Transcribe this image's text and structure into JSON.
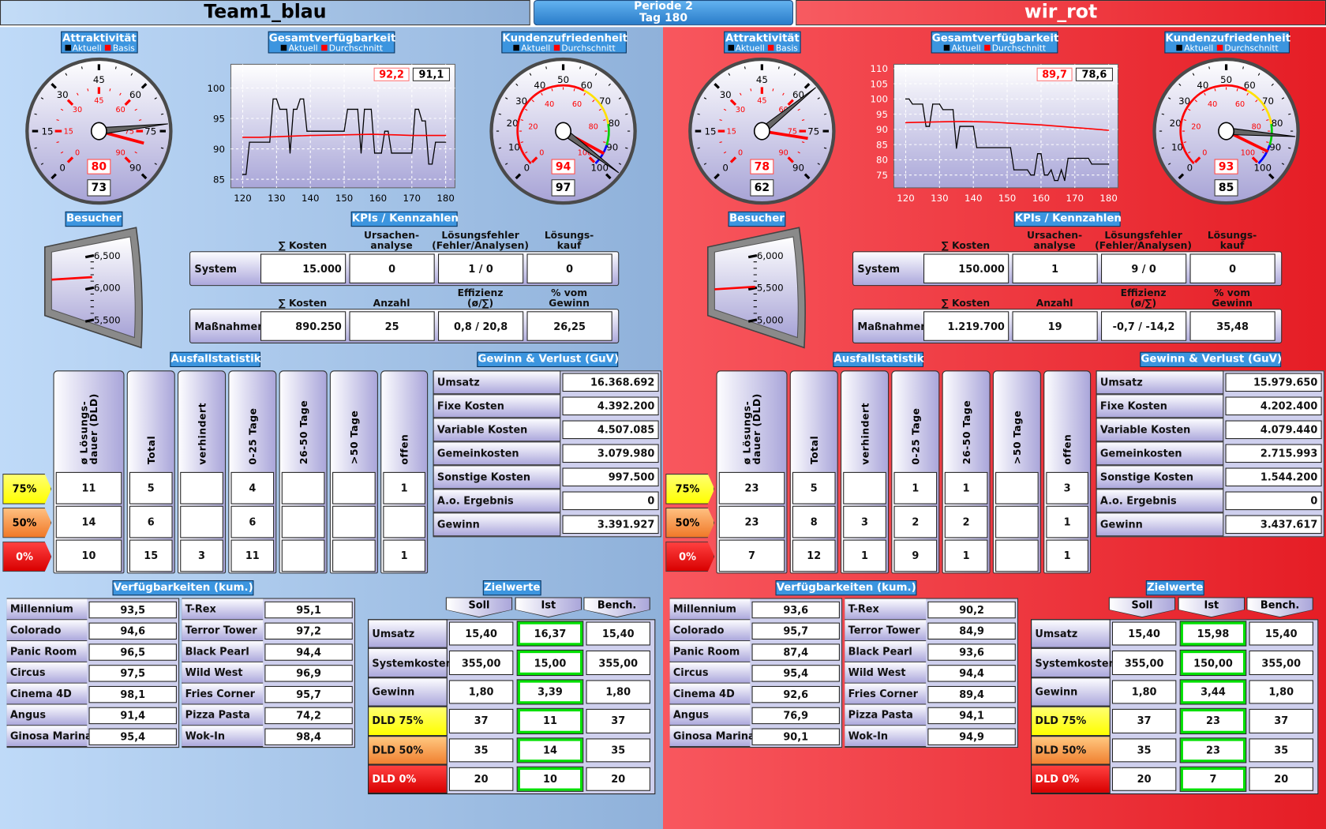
{
  "header": {
    "team_left": "Team1_blau",
    "period": "Periode 2",
    "day": "Tag 180",
    "team_right": "wir_rot"
  },
  "colors": {
    "aktuell": "#000000",
    "basis": "#ff0000",
    "durchschnitt": "#ff0000",
    "blue_theme": "#8fb1da",
    "red_theme": "#e51d25",
    "ist_highlight": "#00e000",
    "dld75": "#ffff00",
    "dld50": "#f08030",
    "dld0": "#e00000"
  },
  "labels": {
    "attraktivitaet": "Attraktivität",
    "gesamtverfuegbarkeit": "Gesamtverfügbarkeit",
    "kundenzufriedenheit": "Kundenzufriedenheit",
    "aktuell": "Aktuell",
    "basis": "Basis",
    "durchschnitt": "Durchschnitt",
    "besucher": "Besucher",
    "kpis": "KPIs / Kennzahlen",
    "kpi_headers_system": [
      "∑ Kosten",
      "Ursachen-\nanalyse",
      "Lösungsfehler\n(Fehler/Analysen)",
      "Lösungs-\nkauf"
    ],
    "kpi_headers_massnahmen": [
      "∑ Kosten",
      "Anzahl",
      "Effizienz\n(ø/∑)",
      "% vom\nGewinn"
    ],
    "system": "System",
    "massnahmen": "Maßnahmen",
    "ausfallstatistik": "Ausfallstatistik",
    "ausfall_columns": [
      "ø Lösungs-\ndauer (DLD)",
      "Total",
      "verhindert",
      "0-25 Tage",
      "26-50 Tage",
      ">50 Tage",
      "offen"
    ],
    "ausfall_rows": [
      "75%",
      "50%",
      "0%"
    ],
    "guv": "Gewinn & Verlust (GuV)",
    "guv_rows": [
      "Umsatz",
      "Fixe Kosten",
      "Variable Kosten",
      "Gemeinkosten",
      "Sonstige Kosten",
      "A.o. Ergebnis",
      "Gewinn"
    ],
    "verfuegbarkeiten": "Verfügbarkeiten (kum.)",
    "rides": [
      "Millennium",
      "Colorado",
      "Panic Room",
      "Circus",
      "Cinema 4D",
      "Angus",
      "Ginosa Marina",
      "T-Rex",
      "Terror Tower",
      "Black Pearl",
      "Wild West",
      "Fries Corner",
      "Pizza Pasta",
      "Wok-In"
    ],
    "zielwerte": "Zielwerte",
    "ziel_columns": [
      "Soll",
      "Ist",
      "Bench."
    ],
    "ziel_rows": [
      "Umsatz",
      "Systemkosten",
      "Gewinn",
      "DLD 75%",
      "DLD 50%",
      "DLD 0%"
    ]
  },
  "gauges": {
    "attraktivitaet": {
      "min": 0,
      "max": 90,
      "outer_labels": [
        "0",
        "15",
        "30",
        "45",
        "60",
        "75",
        "90"
      ],
      "inner_labels": [
        "0",
        "15",
        "30",
        "45",
        "60",
        "75",
        "90"
      ]
    },
    "kundenzufriedenheit": {
      "min": 0,
      "max": 100,
      "outer_labels": [
        "0",
        "10",
        "20",
        "30",
        "40",
        "50",
        "60",
        "70",
        "80",
        "90",
        "100"
      ],
      "inner_labels": [
        "0",
        "20",
        "40",
        "60",
        "80",
        "100"
      ]
    }
  },
  "teams": [
    {
      "attraktivitaet": {
        "aktuell": 73,
        "basis": 80
      },
      "kundenzufriedenheit": {
        "aktuell": 97,
        "durchschnitt": 94
      },
      "verfuegbarkeit": {
        "durchschnitt": "92,2",
        "aktuell": "91,1"
      },
      "besucher": {
        "value": 6150,
        "scale": [
          5500,
          6000,
          6500
        ],
        "tick_labels": [
          "6,500",
          "6,000",
          "5,500"
        ]
      },
      "kpi_system": [
        "15.000",
        "0",
        "1 / 0",
        "0"
      ],
      "kpi_massnahmen": [
        "890.250",
        "25",
        "0,8 / 20,8",
        "26,25"
      ],
      "ausfall": [
        [
          "11",
          "5",
          "",
          "4",
          "",
          "",
          "1"
        ],
        [
          "14",
          "6",
          "",
          "6",
          "",
          "",
          ""
        ],
        [
          "10",
          "15",
          "3",
          "11",
          "",
          "",
          "1"
        ]
      ],
      "guv": [
        "16.368.692",
        "4.392.200",
        "4.507.085",
        "3.079.980",
        "997.500",
        "0",
        "3.391.927"
      ],
      "verfuegbarkeiten": [
        "93,5",
        "94,6",
        "96,5",
        "97,5",
        "98,1",
        "91,4",
        "95,4",
        "95,1",
        "97,2",
        "94,4",
        "96,9",
        "95,7",
        "74,2",
        "98,4"
      ],
      "zielwerte": [
        [
          "15,40",
          "16,37",
          "15,40"
        ],
        [
          "355,00",
          "15,00",
          "355,00"
        ],
        [
          "1,80",
          "3,39",
          "1,80"
        ],
        [
          "37",
          "11",
          "37"
        ],
        [
          "35",
          "14",
          "35"
        ],
        [
          "20",
          "10",
          "20"
        ]
      ]
    },
    {
      "attraktivitaet": {
        "aktuell": 62,
        "basis": 78
      },
      "kundenzufriedenheit": {
        "aktuell": 85,
        "durchschnitt": 93
      },
      "verfuegbarkeit": {
        "durchschnitt": "89,7",
        "aktuell": "78,6"
      },
      "besucher": {
        "value": 5500,
        "scale": [
          5000,
          5500,
          6000
        ],
        "tick_labels": [
          "6,000",
          "5,500",
          "5,000"
        ]
      },
      "kpi_system": [
        "150.000",
        "1",
        "9 / 0",
        "0"
      ],
      "kpi_massnahmen": [
        "1.219.700",
        "19",
        "-0,7 / -14,2",
        "35,48"
      ],
      "ausfall": [
        [
          "23",
          "5",
          "",
          "1",
          "1",
          "",
          "3"
        ],
        [
          "23",
          "8",
          "3",
          "2",
          "2",
          "",
          "1"
        ],
        [
          "7",
          "12",
          "1",
          "9",
          "1",
          "",
          "1"
        ]
      ],
      "guv": [
        "15.979.650",
        "4.202.400",
        "4.079.440",
        "2.715.993",
        "1.544.200",
        "0",
        "3.437.617"
      ],
      "verfuegbarkeiten": [
        "93,6",
        "95,7",
        "87,4",
        "95,4",
        "92,6",
        "76,9",
        "90,1",
        "90,2",
        "84,9",
        "93,6",
        "94,4",
        "89,4",
        "94,1",
        "94,9"
      ],
      "zielwerte": [
        [
          "15,40",
          "15,98",
          "15,40"
        ],
        [
          "355,00",
          "150,00",
          "355,00"
        ],
        [
          "1,80",
          "3,44",
          "1,80"
        ],
        [
          "37",
          "23",
          "37"
        ],
        [
          "35",
          "23",
          "35"
        ],
        [
          "20",
          "7",
          "20"
        ]
      ]
    }
  ],
  "chart_data": [
    {
      "type": "line",
      "title": "Gesamtverfügbarkeit",
      "xlim": [
        116.5,
        182.75
      ],
      "ylim": [
        83.6,
        103.9
      ],
      "xticks": [
        "120",
        "130",
        "140",
        "150",
        "160",
        "170",
        "180"
      ],
      "yticks": [
        "85",
        "90",
        "95",
        "100"
      ],
      "grid": true,
      "series": [
        {
          "name": "Aktuell",
          "color": "#000000",
          "points": [
            [
              120,
              85.8
            ],
            [
              121,
              85.8
            ],
            [
              122,
              91.1
            ],
            [
              128,
              91.1
            ],
            [
              129,
              98.2
            ],
            [
              130,
              98.2
            ],
            [
              131,
              96.5
            ],
            [
              133,
              96.5
            ],
            [
              134,
              89.3
            ],
            [
              135,
              96.5
            ],
            [
              136,
              96.5
            ],
            [
              137,
              98.2
            ],
            [
              138,
              98.2
            ],
            [
              139,
              92.9
            ],
            [
              150,
              92.9
            ],
            [
              151,
              96.5
            ],
            [
              154,
              96.5
            ],
            [
              155,
              89.3
            ],
            [
              156,
              96.5
            ],
            [
              158,
              96.5
            ],
            [
              159,
              89.3
            ],
            [
              161,
              89.3
            ],
            [
              162,
              92.9
            ],
            [
              163,
              92.9
            ],
            [
              164,
              89.3
            ],
            [
              170,
              89.3
            ],
            [
              171,
              96.5
            ],
            [
              172,
              96.5
            ],
            [
              173,
              94.6
            ],
            [
              174,
              94.6
            ],
            [
              175,
              87.5
            ],
            [
              176,
              87.5
            ],
            [
              177,
              91.1
            ],
            [
              180,
              91.1
            ]
          ]
        },
        {
          "name": "Durchschnitt",
          "color": "#ff0000",
          "points": [
            [
              120,
              91.9
            ],
            [
              125,
              91.9
            ],
            [
              130,
              92.0
            ],
            [
              140,
              92.2
            ],
            [
              150,
              92.3
            ],
            [
              158,
              92.4
            ],
            [
              165,
              92.3
            ],
            [
              170,
              92.2
            ],
            [
              180,
              92.2
            ]
          ]
        }
      ]
    },
    {
      "type": "line",
      "title": "Gesamtverfügbarkeit",
      "xlim": [
        116.5,
        182.75
      ],
      "ylim": [
        70.8,
        111.4
      ],
      "xticks": [
        "120",
        "130",
        "140",
        "150",
        "160",
        "170",
        "180"
      ],
      "yticks": [
        "75",
        "80",
        "85",
        "90",
        "95",
        "100",
        "105",
        "110"
      ],
      "grid": true,
      "series": [
        {
          "name": "Aktuell",
          "color": "#000000",
          "points": [
            [
              120,
              100
            ],
            [
              121,
              100
            ],
            [
              122,
              98.3
            ],
            [
              125,
              98.3
            ],
            [
              126,
              91
            ],
            [
              127,
              91
            ],
            [
              128,
              98.3
            ],
            [
              130,
              98.3
            ],
            [
              131,
              96.5
            ],
            [
              134,
              96.5
            ],
            [
              135,
              83.8
            ],
            [
              136,
              91
            ],
            [
              140,
              91
            ],
            [
              141,
              84
            ],
            [
              151,
              84
            ],
            [
              152,
              76.7
            ],
            [
              156,
              76.7
            ],
            [
              157,
              75
            ],
            [
              158,
              75
            ],
            [
              159,
              82
            ],
            [
              160,
              82
            ],
            [
              161,
              75
            ],
            [
              162,
              75
            ],
            [
              163,
              76.7
            ],
            [
              164,
              73.2
            ],
            [
              165,
              73.2
            ],
            [
              166,
              76.7
            ],
            [
              167,
              73.2
            ],
            [
              168,
              80.5
            ],
            [
              174,
              80.5
            ],
            [
              175,
              78.6
            ],
            [
              180,
              78.6
            ]
          ]
        },
        {
          "name": "Durchschnitt",
          "color": "#ff0000",
          "points": [
            [
              120,
              92.2
            ],
            [
              130,
              92.5
            ],
            [
              137,
              92.6
            ],
            [
              145,
              92.4
            ],
            [
              150,
              92.1
            ],
            [
              160,
              91.5
            ],
            [
              170,
              90.6
            ],
            [
              180,
              89.7
            ]
          ]
        }
      ]
    }
  ]
}
